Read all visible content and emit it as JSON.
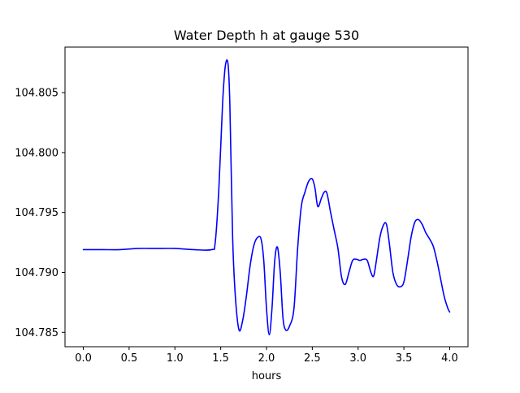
{
  "chart_data": {
    "type": "line",
    "title": "Water Depth h at gauge 530",
    "xlabel": "hours",
    "ylabel": "",
    "xlim": [
      -0.2,
      4.2
    ],
    "ylim": [
      104.7838,
      104.8088
    ],
    "grid": false,
    "xticks": [
      0.0,
      0.5,
      1.0,
      1.5,
      2.0,
      2.5,
      3.0,
      3.5,
      4.0
    ],
    "xtick_labels": [
      "0.0",
      "0.5",
      "1.0",
      "1.5",
      "2.0",
      "2.5",
      "3.0",
      "3.5",
      "4.0"
    ],
    "yticks": [
      104.785,
      104.79,
      104.795,
      104.8,
      104.805
    ],
    "ytick_labels": [
      "104.785",
      "104.790",
      "104.795",
      "104.800",
      "104.805"
    ],
    "series": [
      {
        "color": "#0000ff",
        "x": [
          0.0,
          0.2,
          0.4,
          0.6,
          0.8,
          1.0,
          1.2,
          1.4,
          1.44,
          1.48,
          1.52,
          1.55,
          1.58,
          1.6,
          1.63,
          1.66,
          1.7,
          1.74,
          1.78,
          1.82,
          1.86,
          1.9,
          1.94,
          1.97,
          2.0,
          2.03,
          2.06,
          2.09,
          2.12,
          2.15,
          2.18,
          2.21,
          2.25,
          2.3,
          2.34,
          2.38,
          2.42,
          2.46,
          2.5,
          2.53,
          2.56,
          2.6,
          2.63,
          2.66,
          2.7,
          2.74,
          2.78,
          2.82,
          2.86,
          2.9,
          2.94,
          2.98,
          3.02,
          3.06,
          3.1,
          3.14,
          3.17,
          3.2,
          3.24,
          3.28,
          3.31,
          3.34,
          3.38,
          3.42,
          3.46,
          3.5,
          3.54,
          3.58,
          3.62,
          3.66,
          3.7,
          3.74,
          3.78,
          3.82,
          3.86,
          3.9,
          3.94,
          3.98,
          4.0
        ],
        "y": [
          104.7919,
          104.7919,
          104.7919,
          104.792,
          104.792,
          104.792,
          104.7919,
          104.7919,
          104.7925,
          104.797,
          104.804,
          104.8072,
          104.8074,
          104.804,
          104.793,
          104.788,
          104.7852,
          104.786,
          104.788,
          104.7905,
          104.7922,
          104.7929,
          104.7928,
          104.791,
          104.787,
          104.7848,
          104.787,
          104.791,
          104.7921,
          104.79,
          104.7862,
          104.7852,
          104.7855,
          104.787,
          104.792,
          104.7955,
          104.7967,
          104.7976,
          104.7978,
          104.797,
          104.7955,
          104.7962,
          104.7967,
          104.7966,
          104.795,
          104.7935,
          104.792,
          104.7896,
          104.789,
          104.79,
          104.791,
          104.7911,
          104.791,
          104.7911,
          104.791,
          104.79,
          104.7897,
          104.791,
          104.793,
          104.794,
          104.794,
          104.7925,
          104.79,
          104.789,
          104.7888,
          104.7892,
          104.791,
          104.793,
          104.7942,
          104.7944,
          104.794,
          104.7933,
          104.7928,
          104.7922,
          104.791,
          104.7895,
          104.788,
          104.787,
          104.7867
        ]
      }
    ]
  }
}
